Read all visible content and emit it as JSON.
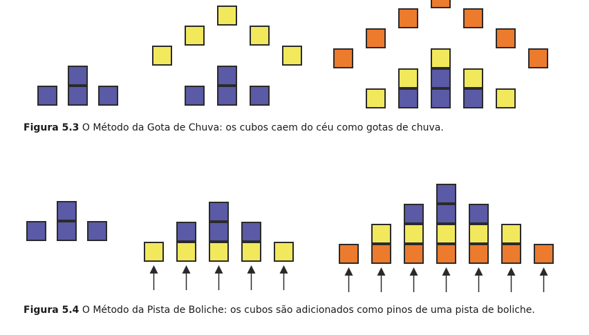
{
  "colors": {
    "blue": "#5a5aa6",
    "yellow": "#f2e85c",
    "orange": "#ec7b2e",
    "border": "#2a2a2a",
    "arrow": "#2a2a2a"
  },
  "figure_5_3": {
    "label": "Figura 5.3",
    "text": "O Método da Gota de Chuva: os cubos caem do céu como gotas de chuva."
  },
  "figure_5_4": {
    "label": "Figura 5.4",
    "text": "O Método da Pista de Boliche: os cubos são adicionados como pinos de uma pista de boliche."
  },
  "diagrams": {
    "fig53_step1": [
      {
        "col": 0,
        "level": 0,
        "color": "blue"
      },
      {
        "col": 1,
        "level": 0,
        "color": "blue"
      },
      {
        "col": 1,
        "level": 1,
        "color": "blue"
      },
      {
        "col": 2,
        "level": 0,
        "color": "blue"
      }
    ],
    "fig53_step2": [
      {
        "col": 0,
        "level": 2,
        "color": "yellow"
      },
      {
        "col": 1,
        "level": 0,
        "color": "blue"
      },
      {
        "col": 1,
        "level": 3,
        "color": "yellow"
      },
      {
        "col": 2,
        "level": 0,
        "color": "blue"
      },
      {
        "col": 2,
        "level": 1,
        "color": "blue"
      },
      {
        "col": 2,
        "level": 4,
        "color": "yellow"
      },
      {
        "col": 3,
        "level": 0,
        "color": "blue"
      },
      {
        "col": 3,
        "level": 3,
        "color": "yellow"
      },
      {
        "col": 4,
        "level": 2,
        "color": "yellow"
      }
    ],
    "fig53_step3": [
      {
        "col": 0,
        "level": 2,
        "color": "orange"
      },
      {
        "col": 1,
        "level": 0,
        "color": "yellow"
      },
      {
        "col": 1,
        "level": 3,
        "color": "orange"
      },
      {
        "col": 2,
        "level": 0,
        "color": "blue"
      },
      {
        "col": 2,
        "level": 1,
        "color": "yellow"
      },
      {
        "col": 2,
        "level": 4,
        "color": "orange"
      },
      {
        "col": 3,
        "level": 0,
        "color": "blue"
      },
      {
        "col": 3,
        "level": 1,
        "color": "blue"
      },
      {
        "col": 3,
        "level": 2,
        "color": "yellow"
      },
      {
        "col": 3,
        "level": 5,
        "color": "orange"
      },
      {
        "col": 4,
        "level": 0,
        "color": "blue"
      },
      {
        "col": 4,
        "level": 1,
        "color": "yellow"
      },
      {
        "col": 4,
        "level": 4,
        "color": "orange"
      },
      {
        "col": 5,
        "level": 0,
        "color": "yellow"
      },
      {
        "col": 5,
        "level": 3,
        "color": "orange"
      },
      {
        "col": 6,
        "level": 2,
        "color": "orange"
      }
    ],
    "fig54_step1": [
      {
        "col": 0,
        "level": 0,
        "color": "blue"
      },
      {
        "col": 1,
        "level": 0,
        "color": "blue"
      },
      {
        "col": 1,
        "level": 1,
        "color": "blue"
      },
      {
        "col": 2,
        "level": 0,
        "color": "blue"
      }
    ],
    "fig54_step2": [
      {
        "col": 0,
        "level": 0,
        "color": "yellow"
      },
      {
        "col": 1,
        "level": 0,
        "color": "yellow"
      },
      {
        "col": 1,
        "level": 1,
        "color": "blue"
      },
      {
        "col": 2,
        "level": 0,
        "color": "yellow"
      },
      {
        "col": 2,
        "level": 1,
        "color": "blue"
      },
      {
        "col": 2,
        "level": 2,
        "color": "blue"
      },
      {
        "col": 3,
        "level": 0,
        "color": "yellow"
      },
      {
        "col": 3,
        "level": 1,
        "color": "blue"
      },
      {
        "col": 4,
        "level": 0,
        "color": "yellow"
      }
    ],
    "fig54_step3": [
      {
        "col": 0,
        "level": 0,
        "color": "orange"
      },
      {
        "col": 1,
        "level": 0,
        "color": "orange"
      },
      {
        "col": 1,
        "level": 1,
        "color": "yellow"
      },
      {
        "col": 2,
        "level": 0,
        "color": "orange"
      },
      {
        "col": 2,
        "level": 1,
        "color": "yellow"
      },
      {
        "col": 2,
        "level": 2,
        "color": "blue"
      },
      {
        "col": 3,
        "level": 0,
        "color": "orange"
      },
      {
        "col": 3,
        "level": 1,
        "color": "yellow"
      },
      {
        "col": 3,
        "level": 2,
        "color": "blue"
      },
      {
        "col": 3,
        "level": 3,
        "color": "blue"
      },
      {
        "col": 4,
        "level": 0,
        "color": "orange"
      },
      {
        "col": 4,
        "level": 1,
        "color": "yellow"
      },
      {
        "col": 4,
        "level": 2,
        "color": "blue"
      },
      {
        "col": 5,
        "level": 0,
        "color": "orange"
      },
      {
        "col": 5,
        "level": 1,
        "color": "yellow"
      },
      {
        "col": 6,
        "level": 0,
        "color": "orange"
      }
    ]
  }
}
